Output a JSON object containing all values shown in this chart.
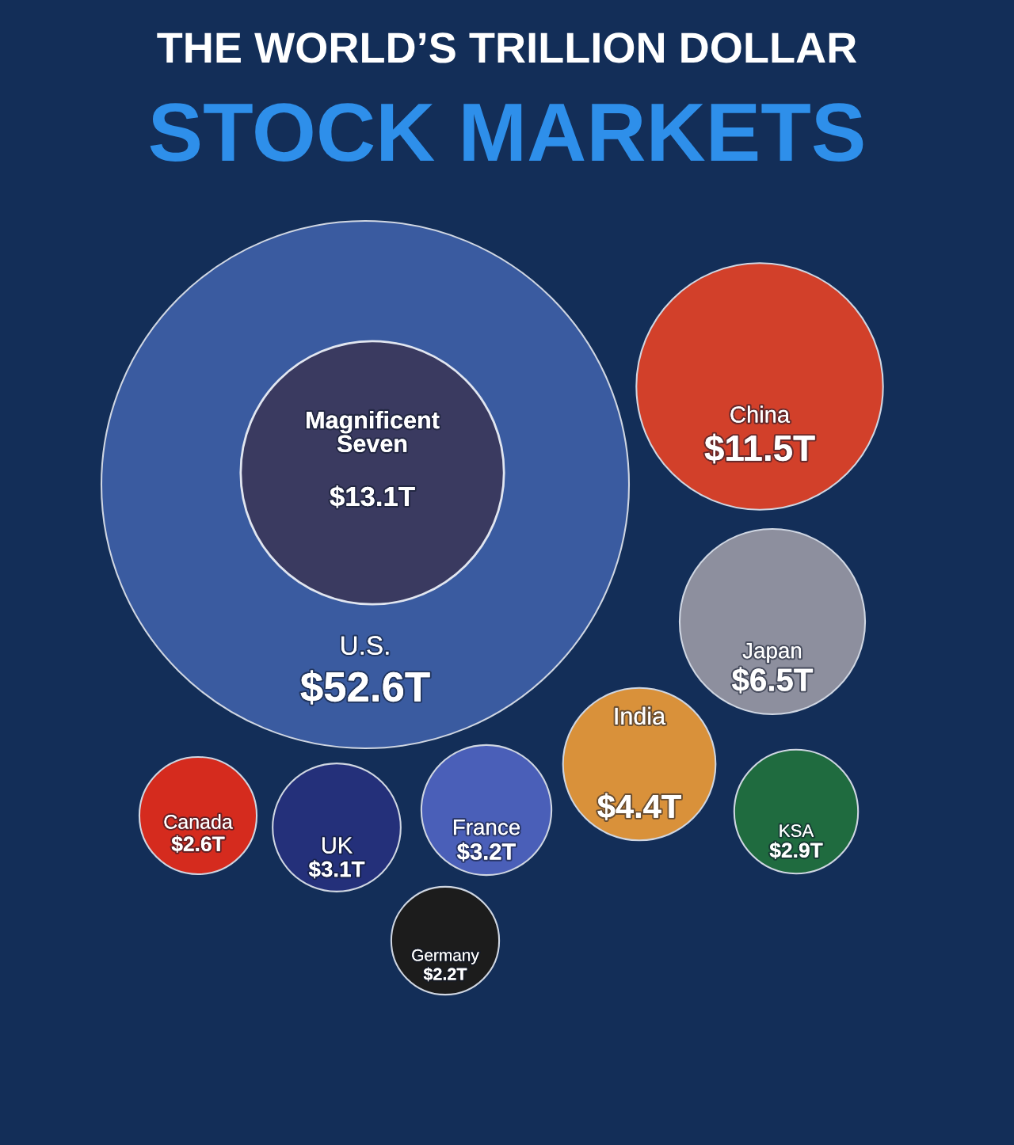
{
  "chart_data": {
    "type": "other",
    "title": "THE WORLD’S TRILLION DOLLAR",
    "subtitle": "STOCK MARKETS",
    "categories": [
      "U.S.",
      "Magnificent\nSeven",
      "China",
      "Japan",
      "India",
      "France",
      "UK",
      "KSA",
      "Canada",
      "Germany"
    ],
    "values": [
      52.6,
      13.1,
      11.5,
      6.5,
      4.4,
      3.2,
      3.1,
      2.9,
      2.6,
      2.2
    ],
    "value_labels": [
      "$52.6T",
      "$13.1T",
      "$11.5T",
      "$6.5T",
      "$4.4T",
      "$3.2T",
      "$3.1T",
      "$2.9T",
      "$2.6T",
      "$2.2T"
    ],
    "colors": [
      "#3a5ba0",
      "#3b3555",
      "#d2402a",
      "#8d8f9e",
      "#d9913a",
      "#4a5fb8",
      "#24307a",
      "#1f6b3f",
      "#d52b1e",
      "#1c1c1c"
    ]
  }
}
